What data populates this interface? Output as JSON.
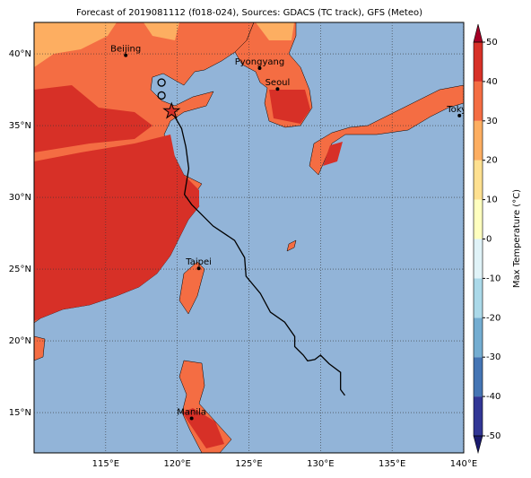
{
  "title": "Forecast of 2019081112 (f018-024), Sources: GDACS (TC track), GFS (Meteo)",
  "map": {
    "xlim": [
      110,
      140
    ],
    "ylim": [
      12.19,
      42.19
    ],
    "xticks": [
      {
        "value": 115,
        "label": "115°E"
      },
      {
        "value": 120,
        "label": "120°E"
      },
      {
        "value": 125,
        "label": "125°E"
      },
      {
        "value": 130,
        "label": "130°E"
      },
      {
        "value": 135,
        "label": "135°E"
      },
      {
        "value": 140,
        "label": "140°E"
      }
    ],
    "yticks": [
      {
        "value": 15,
        "label": "15°N"
      },
      {
        "value": 20,
        "label": "20°N"
      },
      {
        "value": 25,
        "label": "25°N"
      },
      {
        "value": 30,
        "label": "30°N"
      },
      {
        "value": 35,
        "label": "35°N"
      },
      {
        "value": 40,
        "label": "40°N"
      }
    ]
  },
  "track": {
    "lon": [
      119.6,
      120.3,
      120.6,
      120.8,
      120.5,
      121.0,
      122.5,
      124.0,
      124.7,
      124.8,
      125.8,
      126.5,
      127.5,
      128.2,
      128.2,
      128.8,
      129.1,
      129.6,
      130.0,
      130.6,
      131.4,
      131.4,
      131.7
    ],
    "lat": [
      36.0,
      34.8,
      33.5,
      32.0,
      30.2,
      29.5,
      28.0,
      27.0,
      25.8,
      24.5,
      23.3,
      22.0,
      21.3,
      20.3,
      19.6,
      19.0,
      18.6,
      18.7,
      19.0,
      18.4,
      17.8,
      16.6,
      16.2
    ]
  },
  "start": {
    "lon": 119.6,
    "lat": 36.0
  },
  "circles": {
    "lon": [
      118.9,
      118.9
    ],
    "lat": [
      38.0,
      37.1
    ]
  },
  "cities": [
    {
      "name": "Beijing",
      "lon": 116.4,
      "lat": 39.9
    },
    {
      "name": "Pyongyang",
      "lon": 125.75,
      "lat": 39.0
    },
    {
      "name": "Seoul",
      "lon": 127.0,
      "lat": 37.55
    },
    {
      "name": "Tokyo",
      "lon": 139.7,
      "lat": 35.7
    },
    {
      "name": "Taipei",
      "lon": 121.5,
      "lat": 25.05
    },
    {
      "name": "Manila",
      "lon": 121.0,
      "lat": 14.6
    }
  ],
  "colorbar": {
    "label": "Max Temperature (°C)",
    "lim": [
      -50,
      50
    ],
    "ticks": [
      -50,
      -40,
      -30,
      -20,
      -10,
      0,
      10,
      20,
      30,
      40,
      50
    ],
    "colors": [
      "#313695",
      "#4575b4",
      "#74add1",
      "#abd9e9",
      "#e0f3f8",
      "#ffffbf",
      "#fee090",
      "#fdae61",
      "#f46d43",
      "#d73027"
    ],
    "under": "#1a1a6e",
    "over": "#a50026"
  }
}
